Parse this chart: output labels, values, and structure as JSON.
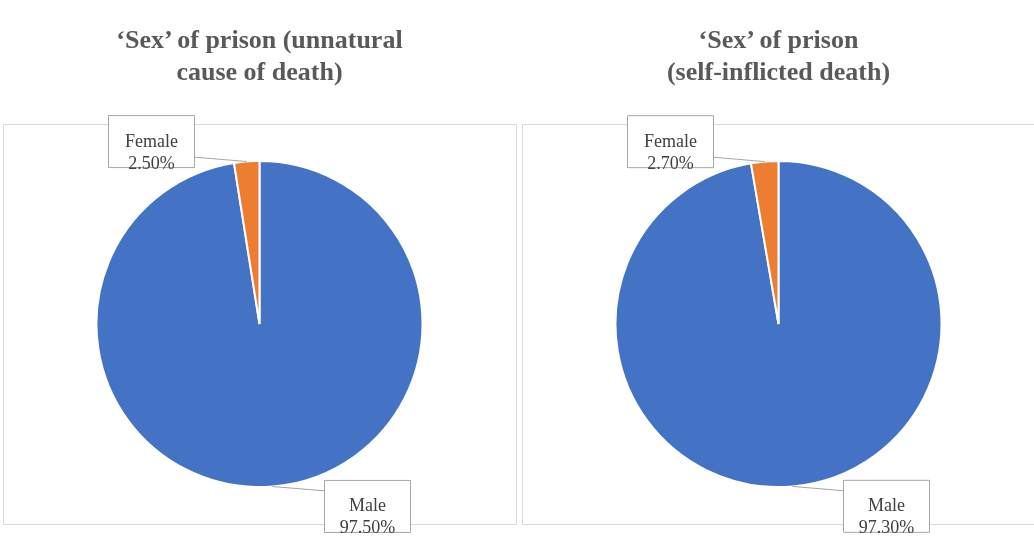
{
  "chart_data": [
    {
      "type": "pie",
      "title": "‘Sex’ of prison (unnatural cause of death)",
      "categories": [
        "Male",
        "Female"
      ],
      "values": [
        97.5,
        2.5
      ],
      "colors": [
        "#4472c4",
        "#ed7d31"
      ],
      "value_labels": [
        "97.50%",
        "2.50%"
      ]
    },
    {
      "type": "pie",
      "title": "‘Sex’ of prison (self-inflicted death)",
      "categories": [
        "Male",
        "Female"
      ],
      "values": [
        97.3,
        2.7
      ],
      "colors": [
        "#4472c4",
        "#ed7d31"
      ],
      "value_labels": [
        "97.30%",
        "2.70%"
      ]
    }
  ]
}
